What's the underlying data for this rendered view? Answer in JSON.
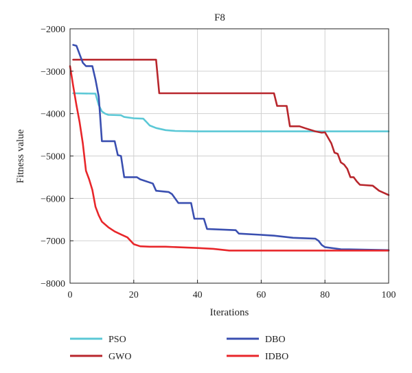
{
  "chart_data": {
    "type": "line",
    "title": "F8",
    "xlabel": "Iterations",
    "ylabel": "Fitness value",
    "xlim": [
      0,
      100
    ],
    "ylim": [
      -8000,
      -2000
    ],
    "xticks": [
      0,
      20,
      40,
      60,
      80,
      100
    ],
    "yticks": [
      -2000,
      -3000,
      -4000,
      -5000,
      -6000,
      -7000,
      -8000
    ],
    "xtick_labels": [
      "0",
      "20",
      "40",
      "60",
      "80",
      "100"
    ],
    "ytick_labels": [
      "−2000",
      "−3000",
      "−4000",
      "−5000",
      "−6000",
      "−7000",
      "−8000"
    ],
    "grid": true,
    "legend_position": "below",
    "series": [
      {
        "name": "PSO",
        "color": "#5bc8d6",
        "points": [
          [
            1,
            -3520
          ],
          [
            8,
            -3530
          ],
          [
            9,
            -3800
          ],
          [
            10,
            -3950
          ],
          [
            11,
            -4000
          ],
          [
            12,
            -4030
          ],
          [
            16,
            -4040
          ],
          [
            17,
            -4080
          ],
          [
            20,
            -4110
          ],
          [
            23,
            -4120
          ],
          [
            24,
            -4200
          ],
          [
            25,
            -4280
          ],
          [
            27,
            -4340
          ],
          [
            30,
            -4390
          ],
          [
            33,
            -4410
          ],
          [
            40,
            -4420
          ],
          [
            100,
            -4420
          ]
        ]
      },
      {
        "name": "GWO",
        "color": "#b8262c",
        "points": [
          [
            1,
            -2730
          ],
          [
            27,
            -2730
          ],
          [
            28,
            -3520
          ],
          [
            64,
            -3520
          ],
          [
            65,
            -3820
          ],
          [
            68,
            -3820
          ],
          [
            69,
            -4300
          ],
          [
            72,
            -4300
          ],
          [
            74,
            -4350
          ],
          [
            77,
            -4420
          ],
          [
            79,
            -4450
          ],
          [
            80,
            -4440
          ],
          [
            82,
            -4700
          ],
          [
            83,
            -4920
          ],
          [
            84,
            -4950
          ],
          [
            85,
            -5150
          ],
          [
            86,
            -5200
          ],
          [
            87,
            -5300
          ],
          [
            88,
            -5500
          ],
          [
            89,
            -5500
          ],
          [
            90,
            -5600
          ],
          [
            91,
            -5680
          ],
          [
            95,
            -5700
          ],
          [
            97,
            -5820
          ],
          [
            100,
            -5920
          ]
        ]
      },
      {
        "name": "DBO",
        "color": "#3a4fb0",
        "points": [
          [
            1,
            -2380
          ],
          [
            2,
            -2400
          ],
          [
            3,
            -2600
          ],
          [
            4,
            -2800
          ],
          [
            5,
            -2880
          ],
          [
            7,
            -2880
          ],
          [
            8,
            -3200
          ],
          [
            9,
            -3600
          ],
          [
            10,
            -4650
          ],
          [
            14,
            -4650
          ],
          [
            15,
            -4980
          ],
          [
            16,
            -5000
          ],
          [
            17,
            -5500
          ],
          [
            21,
            -5500
          ],
          [
            22,
            -5550
          ],
          [
            26,
            -5650
          ],
          [
            27,
            -5820
          ],
          [
            31,
            -5850
          ],
          [
            32,
            -5900
          ],
          [
            34,
            -6110
          ],
          [
            38,
            -6110
          ],
          [
            39,
            -6480
          ],
          [
            42,
            -6480
          ],
          [
            43,
            -6720
          ],
          [
            52,
            -6750
          ],
          [
            53,
            -6830
          ],
          [
            60,
            -6860
          ],
          [
            64,
            -6880
          ],
          [
            70,
            -6930
          ],
          [
            77,
            -6950
          ],
          [
            78,
            -7000
          ],
          [
            79,
            -7100
          ],
          [
            80,
            -7150
          ],
          [
            85,
            -7200
          ],
          [
            100,
            -7220
          ]
        ]
      },
      {
        "name": "IDBO",
        "color": "#e8262a",
        "points": [
          [
            0,
            -2880
          ],
          [
            1,
            -3350
          ],
          [
            2,
            -3800
          ],
          [
            3,
            -4200
          ],
          [
            4,
            -4700
          ],
          [
            5,
            -5350
          ],
          [
            6,
            -5550
          ],
          [
            7,
            -5800
          ],
          [
            8,
            -6200
          ],
          [
            9,
            -6400
          ],
          [
            10,
            -6550
          ],
          [
            12,
            -6680
          ],
          [
            14,
            -6780
          ],
          [
            16,
            -6850
          ],
          [
            18,
            -6920
          ],
          [
            19,
            -7000
          ],
          [
            20,
            -7080
          ],
          [
            22,
            -7130
          ],
          [
            25,
            -7140
          ],
          [
            30,
            -7140
          ],
          [
            40,
            -7170
          ],
          [
            45,
            -7190
          ],
          [
            50,
            -7230
          ],
          [
            100,
            -7230
          ]
        ]
      }
    ]
  }
}
